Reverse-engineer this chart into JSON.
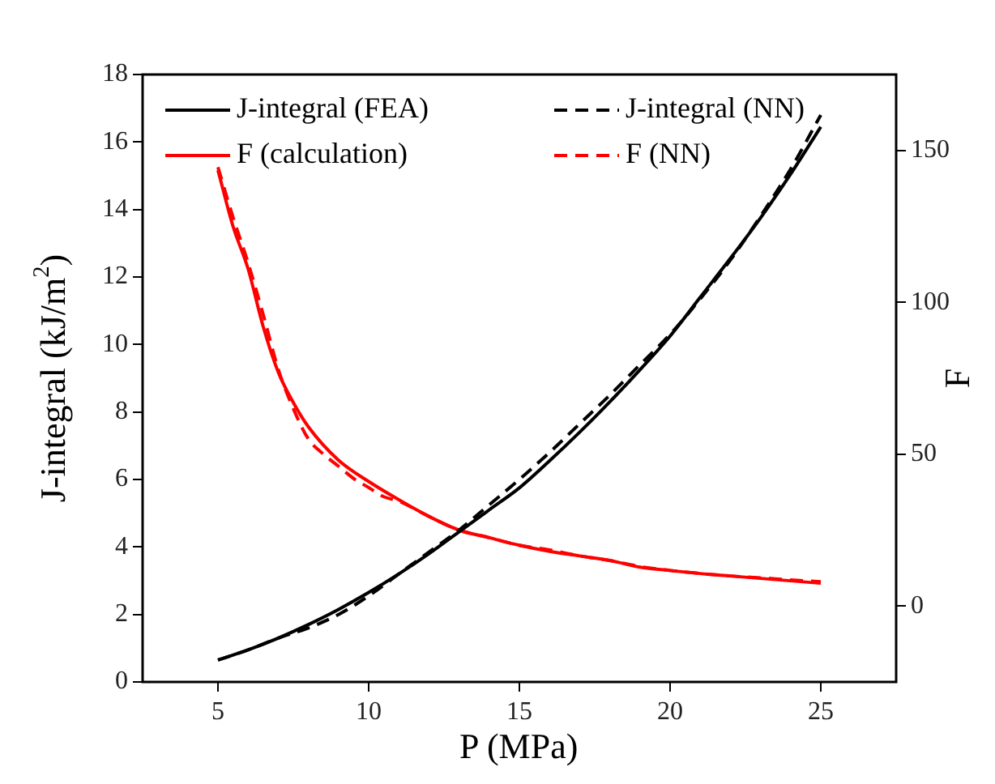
{
  "chart_data": {
    "type": "line",
    "xlabel": "P (MPa)",
    "ylabel": "J-integral (kJ/m$^{2}$)",
    "y2label": "F",
    "xlim": [
      2.5,
      27.5
    ],
    "xticks": [
      5,
      10,
      15,
      20,
      25
    ],
    "ylim": [
      0,
      18
    ],
    "yticks": [
      0,
      2,
      4,
      6,
      8,
      10,
      12,
      14,
      16,
      18
    ],
    "y2lim": [
      -25,
      175
    ],
    "y2ticks": [
      0,
      50,
      100,
      150
    ],
    "legend": "top left",
    "marker": "none",
    "grid": false,
    "series": [
      {
        "name": "J-integral (FEA)",
        "color": "#000000",
        "line_style": "solid",
        "x": [
          5,
          6,
          7,
          8,
          9,
          10,
          11,
          12,
          13,
          14,
          15,
          16,
          17,
          18,
          19,
          20,
          21,
          22,
          23,
          24,
          25
        ],
        "values": [
          0.65,
          0.95,
          1.3,
          1.7,
          2.15,
          2.65,
          3.2,
          3.8,
          4.45,
          5.1,
          5.75,
          6.55,
          7.4,
          8.3,
          9.25,
          10.25,
          11.4,
          12.55,
          13.75,
          15.05,
          16.45
        ]
      },
      {
        "name": "J-integral (NN)",
        "color": "#000000",
        "line_style": "dashed",
        "x": [
          5,
          6,
          7,
          8,
          9,
          10,
          11,
          12,
          13,
          14,
          15,
          16,
          17,
          18,
          19,
          20,
          21,
          22,
          23,
          24,
          25
        ],
        "values": [
          0.65,
          0.95,
          1.3,
          1.6,
          2.0,
          2.55,
          3.2,
          3.85,
          4.5,
          5.25,
          6.0,
          6.8,
          7.65,
          8.5,
          9.4,
          10.3,
          11.35,
          12.5,
          13.8,
          15.2,
          16.8
        ]
      },
      {
        "name": "F (calculation)",
        "color": "#ff0000",
        "line_style": "solid",
        "axis": "y2",
        "x": [
          5,
          5.5,
          6,
          6.5,
          7,
          7.5,
          8,
          9,
          10,
          11,
          12,
          13,
          14,
          15,
          16,
          17,
          18,
          19,
          20,
          21,
          22,
          23,
          24,
          25
        ],
        "values": [
          143.5,
          125,
          111,
          92,
          77,
          67,
          59,
          48,
          41,
          35,
          29.5,
          25,
          22.5,
          20,
          18,
          16.5,
          15,
          12.8,
          11.7,
          10.7,
          9.9,
          9.1,
          8.3,
          7.5
        ]
      },
      {
        "name": "F (NN)",
        "color": "#ff0000",
        "line_style": "dashed",
        "axis": "y2",
        "x": [
          5,
          5.5,
          6,
          6.5,
          7,
          7.5,
          8,
          8.5,
          9,
          9.5,
          10,
          10.5,
          11,
          12,
          13,
          14,
          15,
          16,
          17,
          18,
          19,
          20,
          21,
          22,
          23,
          24,
          25
        ],
        "values": [
          144.5,
          128,
          113,
          96,
          78,
          65,
          55,
          50,
          46,
          42,
          39,
          36,
          34.5,
          29.5,
          25,
          22.5,
          20,
          18.5,
          16.5,
          15,
          13,
          11.7,
          10.7,
          9.9,
          9.3,
          8.6,
          8
        ]
      }
    ]
  }
}
